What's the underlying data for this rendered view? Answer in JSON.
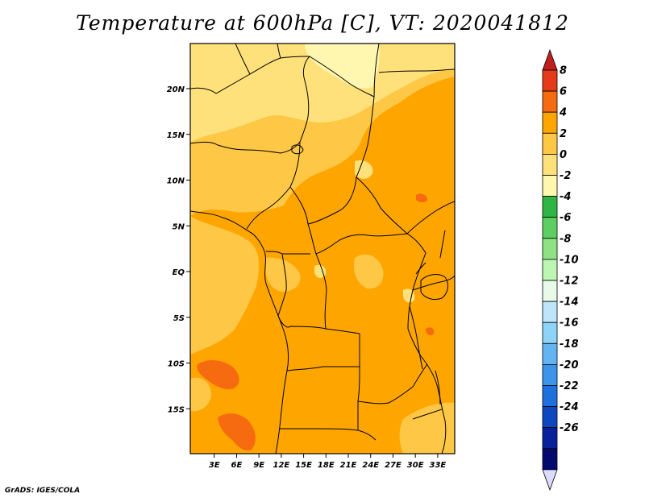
{
  "title": "Temperature at 600hPa [C], VT: 2020041812",
  "credit": "GrADS: IGES/COLA",
  "map": {
    "lat_ticks": [
      {
        "label": "20N",
        "value": 20
      },
      {
        "label": "15N",
        "value": 15
      },
      {
        "label": "10N",
        "value": 10
      },
      {
        "label": "5N",
        "value": 5
      },
      {
        "label": "EQ",
        "value": 0
      },
      {
        "label": "5S",
        "value": -5
      },
      {
        "label": "10S",
        "value": -10
      },
      {
        "label": "15S",
        "value": -15
      }
    ],
    "lon_ticks": [
      {
        "label": "3E",
        "value": 3
      },
      {
        "label": "6E",
        "value": 6
      },
      {
        "label": "9E",
        "value": 9
      },
      {
        "label": "12E",
        "value": 12
      },
      {
        "label": "15E",
        "value": 15
      },
      {
        "label": "18E",
        "value": 18
      },
      {
        "label": "21E",
        "value": 21
      },
      {
        "label": "24E",
        "value": 24
      },
      {
        "label": "27E",
        "value": 27
      },
      {
        "label": "30E",
        "value": 30
      },
      {
        "label": "33E",
        "value": 33
      }
    ],
    "base_color": "#fea500"
  },
  "colorbar": {
    "labels": [
      "8",
      "6",
      "4",
      "2",
      "0",
      "-2",
      "-4",
      "-6",
      "-8",
      "-10",
      "-12",
      "-14",
      "-16",
      "-18",
      "-20",
      "-22",
      "-24",
      "-26"
    ],
    "colors": [
      "#e63b1b",
      "#f66a10",
      "#fea500",
      "#fec745",
      "#fee17b",
      "#fff7b0",
      "#2fb545",
      "#5dcf60",
      "#8fe283",
      "#bdf5b3",
      "#e7fbe8",
      "#bde6fb",
      "#8ed3f8",
      "#64b4f1",
      "#3d94eb",
      "#1e70dc",
      "#0d48c1",
      "#08229b",
      "#030a6e"
    ],
    "top_color": "#c01f1f",
    "bottom_color": "#dcdcff"
  }
}
